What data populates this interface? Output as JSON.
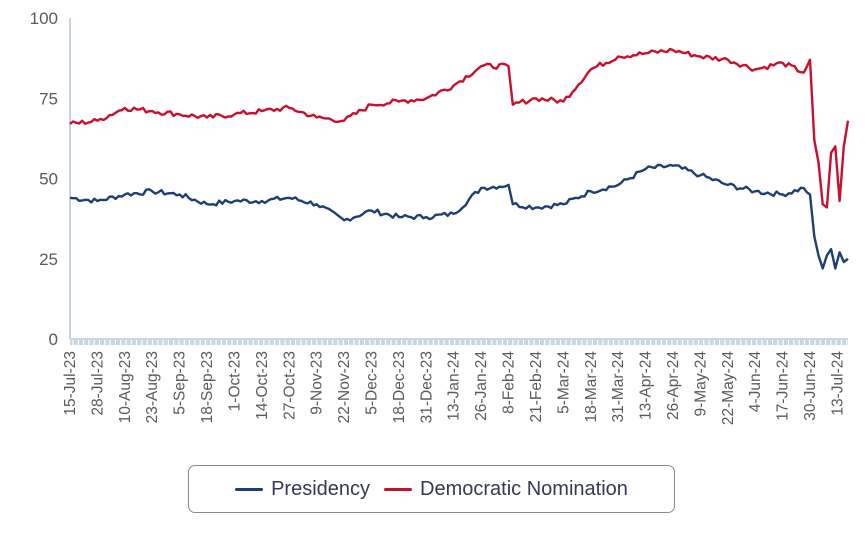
{
  "chart_data": {
    "type": "line",
    "ylim": [
      0,
      100
    ],
    "yticks": [
      0,
      25,
      50,
      75,
      100
    ],
    "grid": false,
    "legend_position": "bottom",
    "x_tick_labels": [
      "15-Jul-23",
      "28-Jul-23",
      "10-Aug-23",
      "23-Aug-23",
      "5-Sep-23",
      "18-Sep-23",
      "1-Oct-23",
      "14-Oct-23",
      "27-Oct-23",
      "9-Nov-23",
      "22-Nov-23",
      "5-Dec-23",
      "18-Dec-23",
      "31-Dec-23",
      "13-Jan-24",
      "26-Jan-24",
      "8-Feb-24",
      "21-Feb-24",
      "5-Mar-24",
      "18-Mar-24",
      "31-Mar-24",
      "13-Apr-24",
      "26-Apr-24",
      "9-May-24",
      "22-May-24",
      "4-Jun-24",
      "17-Jun-24",
      "30-Jun-24",
      "13-Jul-24"
    ],
    "x": [
      "15-Jul-23",
      "28-Jul-23",
      "10-Aug-23",
      "23-Aug-23",
      "5-Sep-23",
      "18-Sep-23",
      "1-Oct-23",
      "14-Oct-23",
      "27-Oct-23",
      "9-Nov-23",
      "22-Nov-23",
      "5-Dec-23",
      "18-Dec-23",
      "31-Dec-23",
      "13-Jan-24",
      "26-Jan-24",
      "8-Feb-24",
      "10-Feb-24",
      "21-Feb-24",
      "5-Mar-24",
      "18-Mar-24",
      "31-Mar-24",
      "13-Apr-24",
      "26-Apr-24",
      "9-May-24",
      "22-May-24",
      "4-Jun-24",
      "17-Jun-24",
      "27-Jun-24",
      "30-Jun-24",
      "2-Jul-24",
      "4-Jul-24",
      "6-Jul-24",
      "8-Jul-24",
      "10-Jul-24",
      "12-Jul-24",
      "14-Jul-24",
      "16-Jul-24",
      "18-Jul-24"
    ],
    "series": [
      {
        "name": "Presidency",
        "color": "#1f3f73",
        "values": [
          44,
          43,
          45,
          46,
          45,
          42,
          43,
          43,
          44,
          42,
          37,
          40,
          38,
          38,
          39,
          47,
          48,
          42,
          41,
          42,
          46,
          48,
          53,
          54,
          51,
          48,
          46,
          45,
          47,
          45,
          32,
          26,
          22,
          26,
          28,
          22,
          27,
          24,
          25
        ]
      },
      {
        "name": "Democratic Nomination",
        "color": "#c8102e",
        "values": [
          67,
          68,
          72,
          71,
          70,
          69,
          70,
          71,
          72,
          69,
          68,
          73,
          74,
          75,
          79,
          85,
          85,
          73,
          75,
          74,
          84,
          88,
          89,
          90,
          88,
          87,
          84,
          86,
          83,
          87,
          62,
          55,
          42,
          41,
          58,
          60,
          43,
          60,
          68
        ]
      }
    ]
  }
}
